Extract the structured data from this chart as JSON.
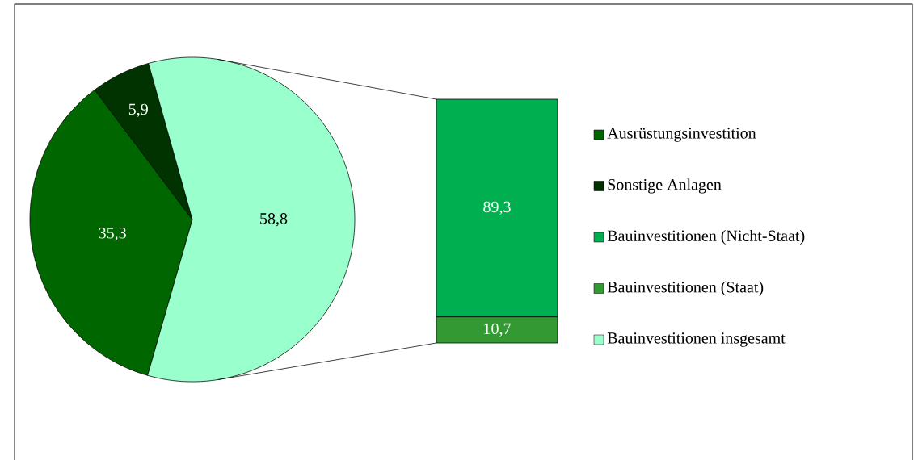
{
  "chart_data": [
    {
      "type": "pie",
      "categories": [
        "Ausrüstungsinvestition",
        "Sonstige Anlagen",
        "Bauinvestitionen insgesamt"
      ],
      "values": [
        35.3,
        5.9,
        58.8
      ],
      "colors": [
        "#006600",
        "#003300",
        "#99ffcc"
      ],
      "value_labels": [
        "35,3",
        "5,9",
        "58,8"
      ],
      "legend": "right"
    },
    {
      "type": "bar",
      "stacked": true,
      "categories": [
        null
      ],
      "series": [
        {
          "name": "Bauinvestitionen (Staat)",
          "color": "#339933",
          "values": [
            10.7
          ],
          "value_labels": [
            "10,7"
          ]
        },
        {
          "name": "Bauinvestitionen (Nicht-Staat)",
          "color": "#00b050",
          "values": [
            89.3
          ],
          "value_labels": [
            "89,3"
          ]
        }
      ],
      "legend": "right"
    }
  ]
}
